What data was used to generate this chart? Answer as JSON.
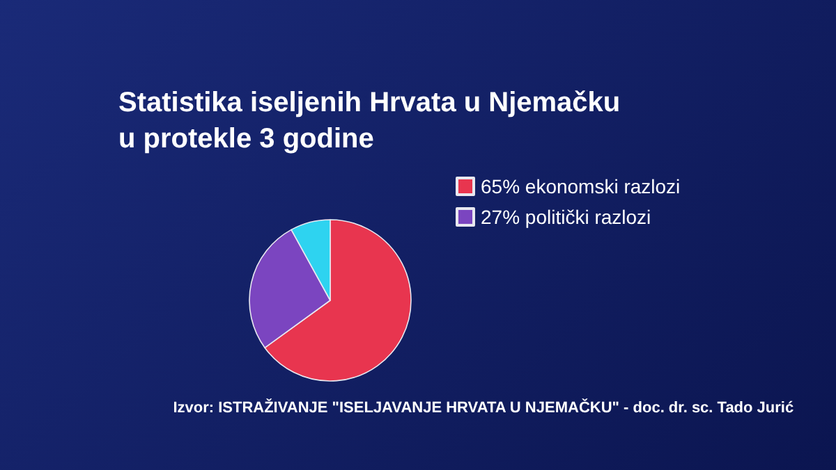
{
  "chart_data": {
    "type": "pie",
    "title": "Statistika iseljenih Hrvata u Njemačku\nu protekle 3 godine",
    "categories": [
      "65% ekonomski razlozi",
      "27% politički razlozi",
      null
    ],
    "values": [
      65,
      27,
      8
    ],
    "colors": [
      "#e8354f",
      "#7b45c0",
      "#2ed3f0"
    ],
    "legend": "right",
    "annotations": [
      "Izvor: ISTRAŽIVANJE \"ISELJAVANJE HRVATA U NJEMAČKU\" - doc. dr. sc. Tado Jurić"
    ]
  }
}
